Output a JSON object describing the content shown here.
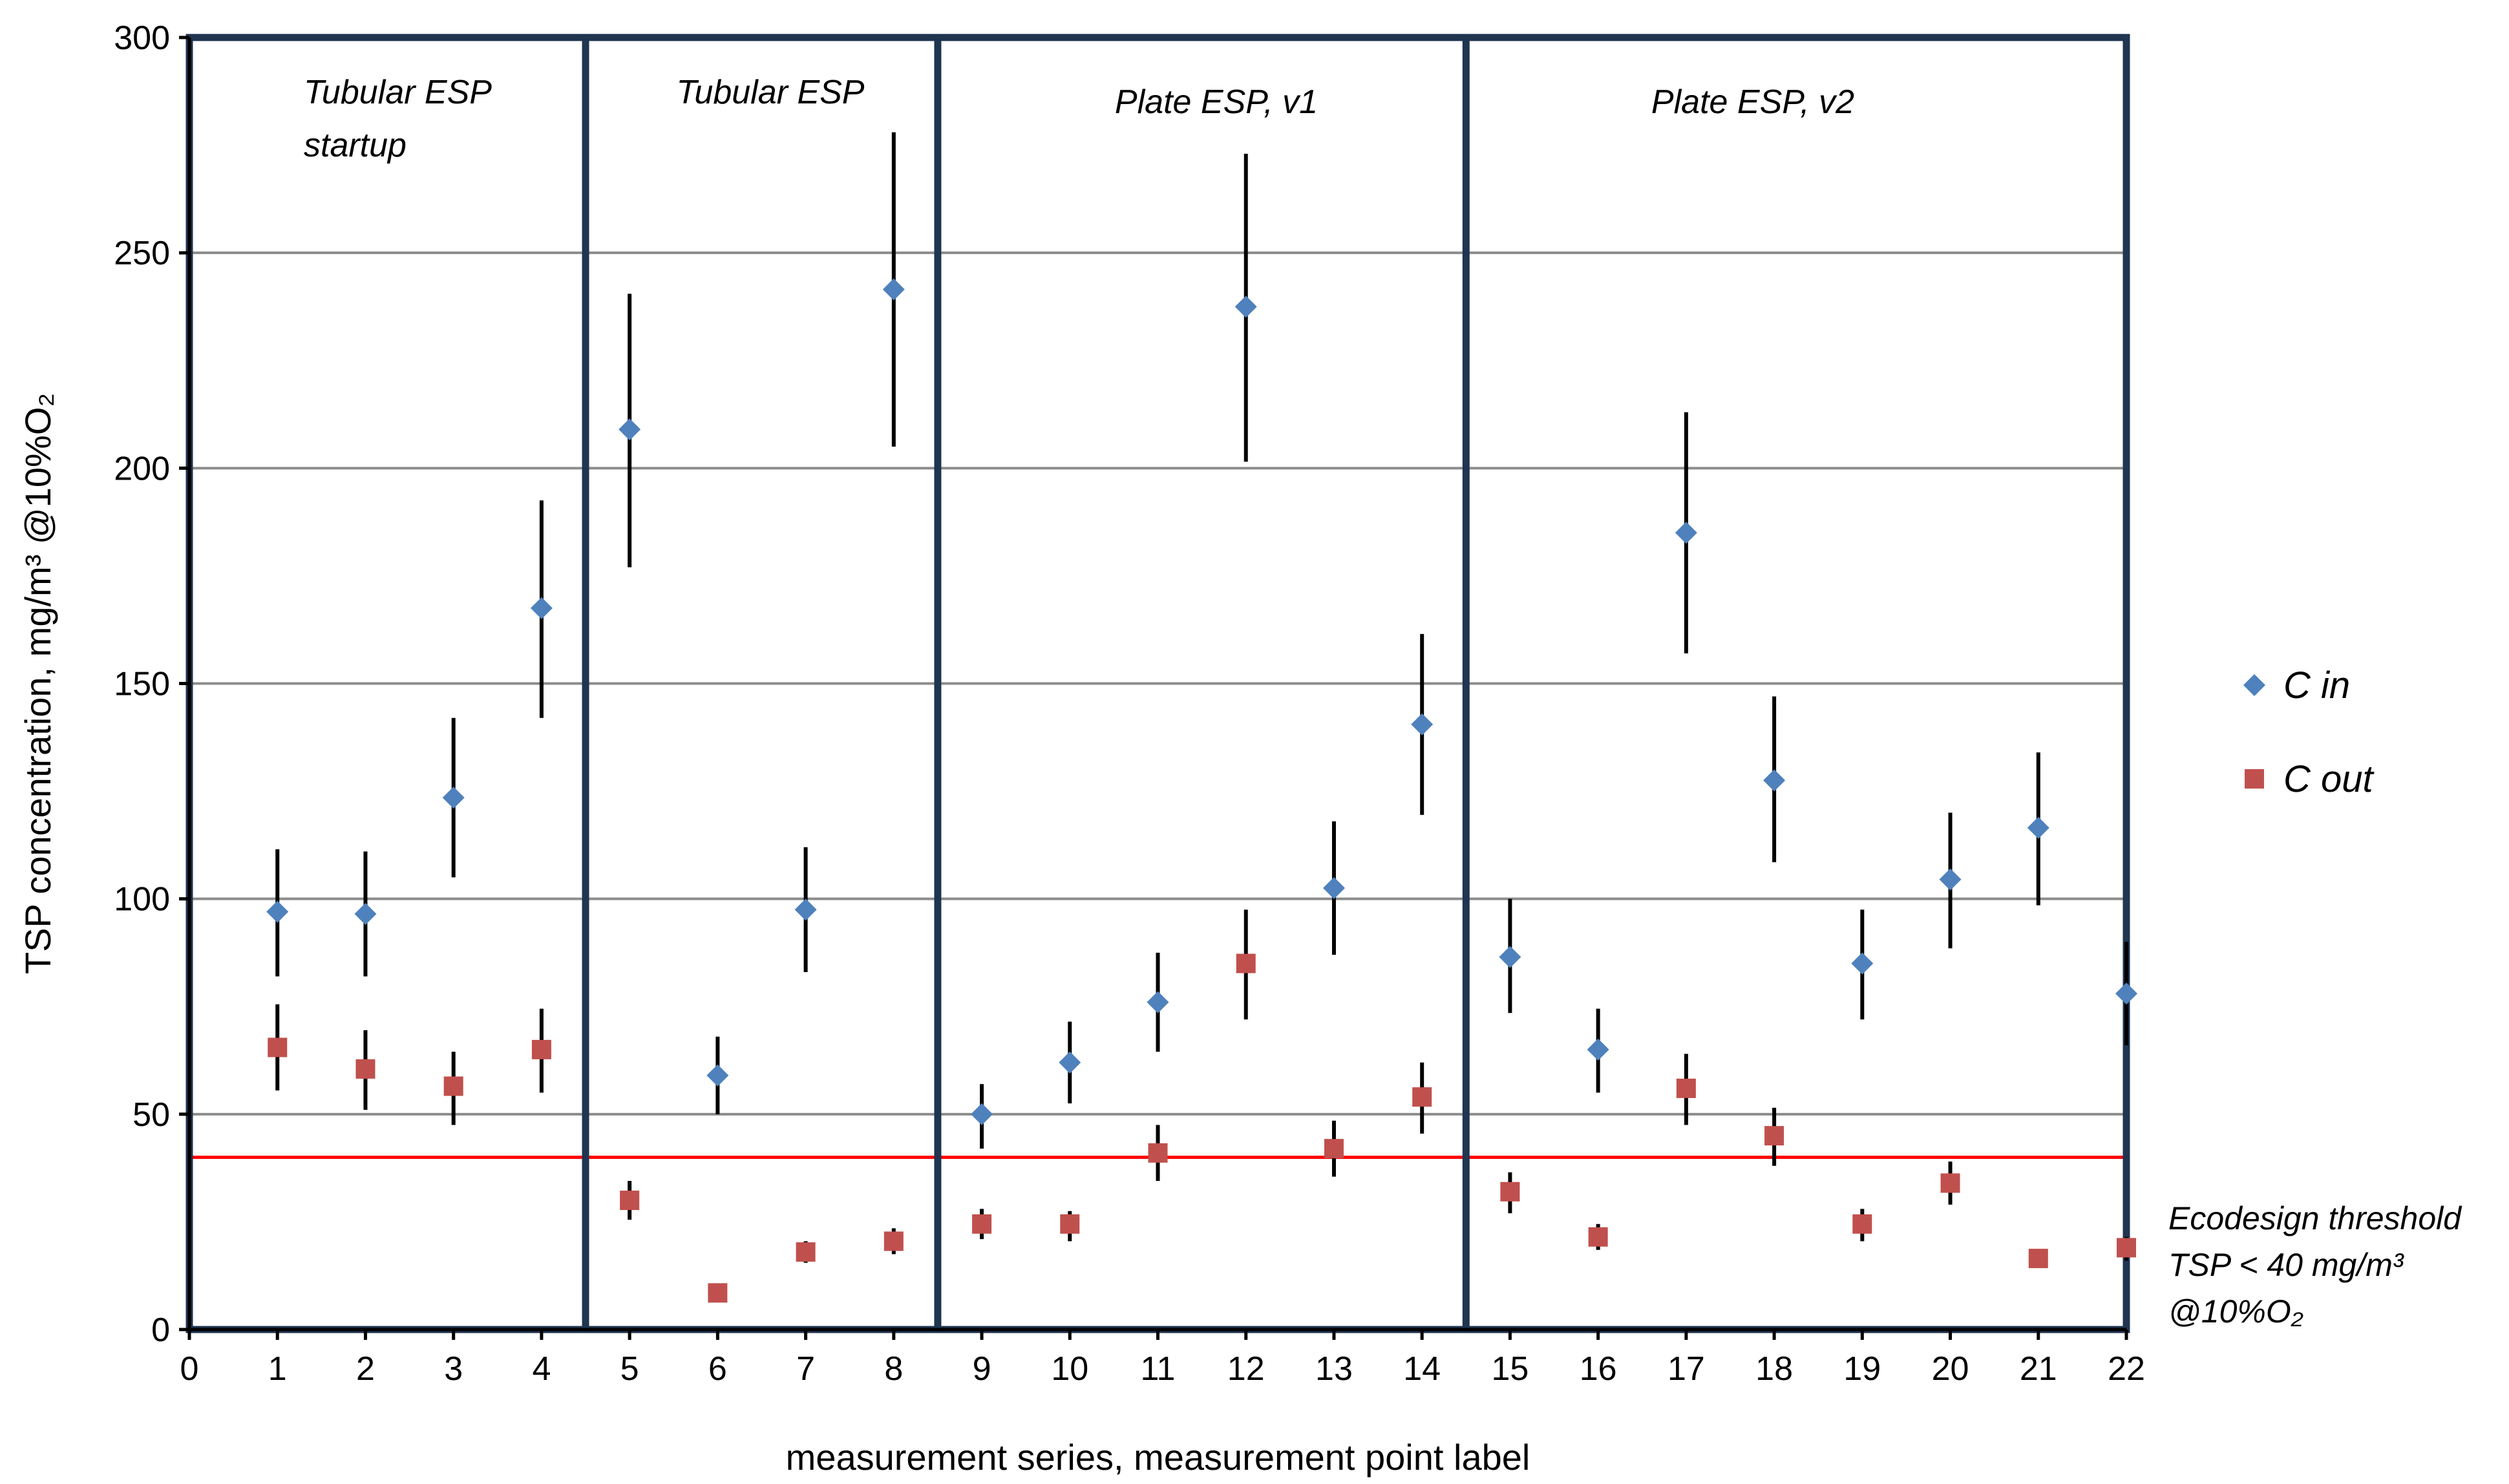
{
  "chart_data": {
    "type": "scatter",
    "title": "",
    "xlabel": "measurement series, measurement point label",
    "ylabel": "TSP concentration, mg/m³ @10%O₂",
    "xlim": [
      0,
      22
    ],
    "ylim": [
      0,
      300
    ],
    "x_ticks": [
      0,
      1,
      2,
      3,
      4,
      5,
      6,
      7,
      8,
      9,
      10,
      11,
      12,
      13,
      14,
      15,
      16,
      17,
      18,
      19,
      20,
      21,
      22
    ],
    "y_ticks": [
      0,
      50,
      100,
      150,
      200,
      250,
      300
    ],
    "grid": "horizontal",
    "legend_position": "right",
    "colors": {
      "c_in": "#4F81BD",
      "c_out": "#C0504D",
      "threshold": "#FF0000",
      "dividers": "#1F3550",
      "grid": "#8C8C8C"
    },
    "series": [
      {
        "name": "C in",
        "marker": "diamond",
        "x": [
          1,
          2,
          3,
          4,
          5,
          6,
          7,
          8,
          9,
          10,
          11,
          12,
          13,
          14,
          15,
          16,
          17,
          18,
          19,
          20,
          21,
          22
        ],
        "values": [
          97,
          96.5,
          123.5,
          167.5,
          209,
          59,
          97.5,
          241.5,
          50,
          62,
          76,
          237.5,
          102.5,
          140.5,
          86.5,
          65,
          185,
          127.5,
          85,
          104.5,
          116.5,
          78
        ],
        "error_low": [
          82,
          82,
          105,
          142,
          177,
          50,
          83,
          205,
          42,
          52.5,
          64.5,
          201.5,
          87,
          119.5,
          73.5,
          55,
          157,
          108.5,
          72,
          88.5,
          98.5,
          66
        ],
        "error_high": [
          111.5,
          111,
          142,
          192.5,
          240.5,
          68,
          112,
          278,
          57,
          71.5,
          87.5,
          273,
          118,
          161.5,
          100,
          74.5,
          213,
          147,
          97.5,
          120,
          134,
          90
        ]
      },
      {
        "name": "C out",
        "marker": "square",
        "x": [
          1,
          2,
          3,
          4,
          5,
          6,
          7,
          8,
          9,
          10,
          11,
          12,
          13,
          14,
          15,
          16,
          17,
          18,
          19,
          20,
          21,
          22
        ],
        "values": [
          65.5,
          60.5,
          56.5,
          65,
          30,
          8.5,
          18,
          20.5,
          24.5,
          24.5,
          41,
          85,
          42,
          54,
          32,
          21.5,
          56,
          45,
          24.5,
          34,
          16.5,
          19
        ],
        "error_low": [
          55.5,
          51,
          47.5,
          55,
          25.5,
          8.5,
          15.5,
          17.5,
          21,
          20.5,
          34.5,
          72,
          35.5,
          45.5,
          27,
          18.5,
          47.5,
          38,
          20.5,
          29,
          16.5,
          16
        ],
        "error_high": [
          75.5,
          69.5,
          64.5,
          74.5,
          34.5,
          8.5,
          20.5,
          23.5,
          28,
          27.5,
          47.5,
          97.5,
          48.5,
          62,
          36.5,
          24.5,
          64,
          51.5,
          28,
          39,
          16.5,
          21.5
        ]
      }
    ],
    "threshold": {
      "value": 40,
      "note_lines": [
        "Ecodesign threshold",
        "TSP < 40 mg/m³",
        "@10%O₂"
      ]
    },
    "regions": [
      {
        "label_lines": [
          "Tubular ESP",
          "startup"
        ],
        "x_start": 0,
        "x_end": 4.5
      },
      {
        "label_lines": [
          "Tubular ESP"
        ],
        "x_start": 4.5,
        "x_end": 8.5
      },
      {
        "label_lines": [
          "Plate ESP, v1"
        ],
        "x_start": 8.5,
        "x_end": 14.5
      },
      {
        "label_lines": [
          "Plate ESP, v2"
        ],
        "x_start": 14.5,
        "x_end": 22
      }
    ],
    "region_dividers": [
      4.5,
      8.5,
      14.5
    ]
  }
}
